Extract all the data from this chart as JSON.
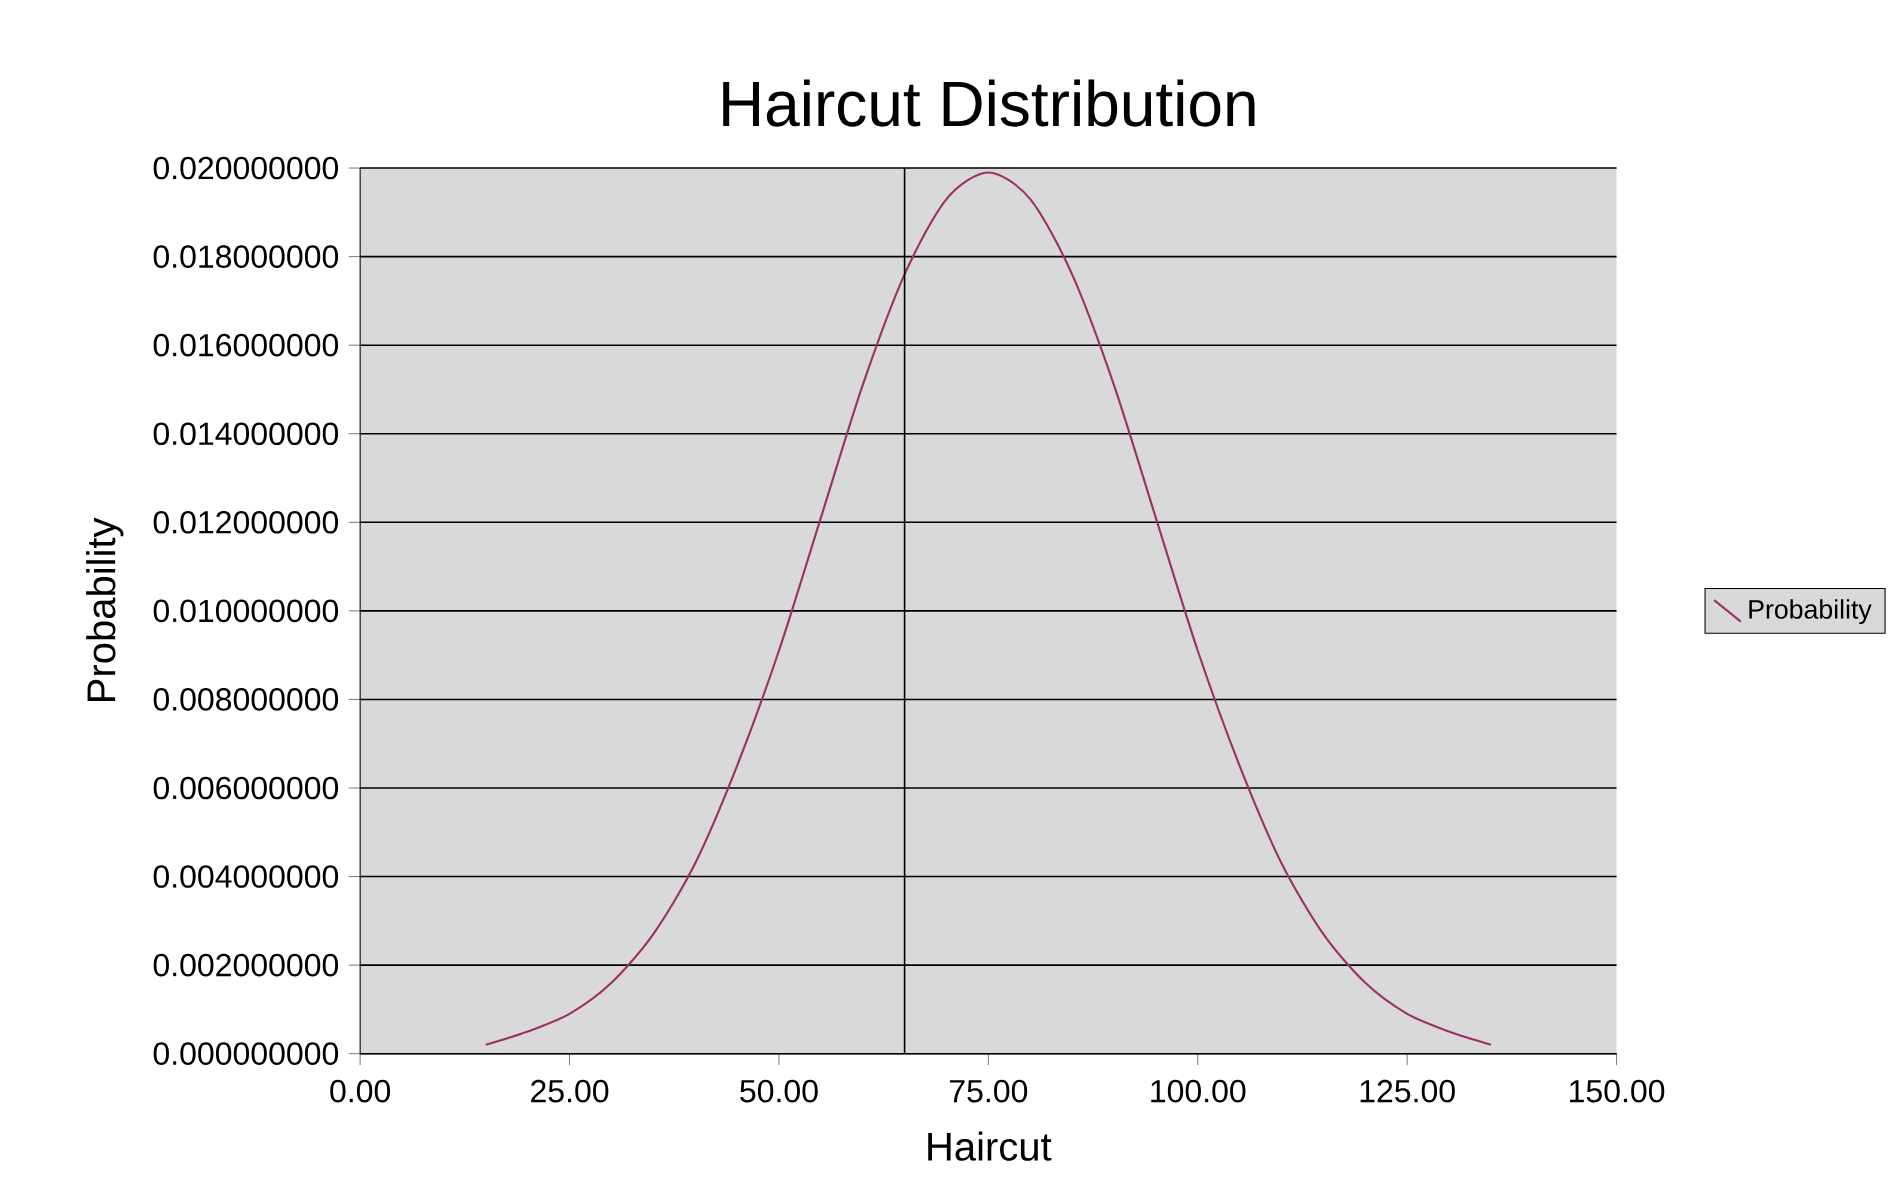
{
  "chart_data": {
    "type": "line",
    "title": "Haircut Distribution",
    "xlabel": "Haircut",
    "ylabel": "Probability",
    "x": [
      15,
      20,
      25,
      30,
      35,
      40,
      45,
      50,
      55,
      60,
      65,
      70,
      75,
      80,
      85,
      90,
      95,
      100,
      105,
      110,
      115,
      120,
      125,
      130,
      135
    ],
    "series": [
      {
        "name": "Probability",
        "color": "#993366",
        "values": [
          0.0002,
          0.0005,
          0.0009,
          0.0016,
          0.0027,
          0.0043,
          0.0065,
          0.0091,
          0.0121,
          0.0151,
          0.0176,
          0.0193,
          0.0199,
          0.0193,
          0.0176,
          0.0151,
          0.0121,
          0.0091,
          0.0065,
          0.0043,
          0.0027,
          0.0016,
          0.0009,
          0.0005,
          0.0002
        ]
      }
    ],
    "xlim": [
      0,
      150
    ],
    "xticks": [
      {
        "value": 0,
        "label": "0.00"
      },
      {
        "value": 25,
        "label": "25.00"
      },
      {
        "value": 50,
        "label": "50.00"
      },
      {
        "value": 75,
        "label": "75.00"
      },
      {
        "value": 100,
        "label": "100.00"
      },
      {
        "value": 125,
        "label": "125.00"
      },
      {
        "value": 150,
        "label": "150.00"
      }
    ],
    "ylim": [
      0,
      0.02
    ],
    "yticks": [
      {
        "value": 0,
        "label": "0.000000000"
      },
      {
        "value": 0.002,
        "label": "0.002000000"
      },
      {
        "value": 0.004,
        "label": "0.004000000"
      },
      {
        "value": 0.006,
        "label": "0.006000000"
      },
      {
        "value": 0.008,
        "label": "0.008000000"
      },
      {
        "value": 0.01,
        "label": "0.010000000"
      },
      {
        "value": 0.012,
        "label": "0.012000000"
      },
      {
        "value": 0.014,
        "label": "0.014000000"
      },
      {
        "value": 0.016,
        "label": "0.016000000"
      },
      {
        "value": 0.018,
        "label": "0.018000000"
      },
      {
        "value": 0.02,
        "label": "0.020000000"
      }
    ],
    "ref_lines": [
      {
        "axis": "x",
        "value": 65,
        "color": "#000000"
      }
    ],
    "grid": "y",
    "legend": "right",
    "marker": "none",
    "line_style": "solid"
  }
}
